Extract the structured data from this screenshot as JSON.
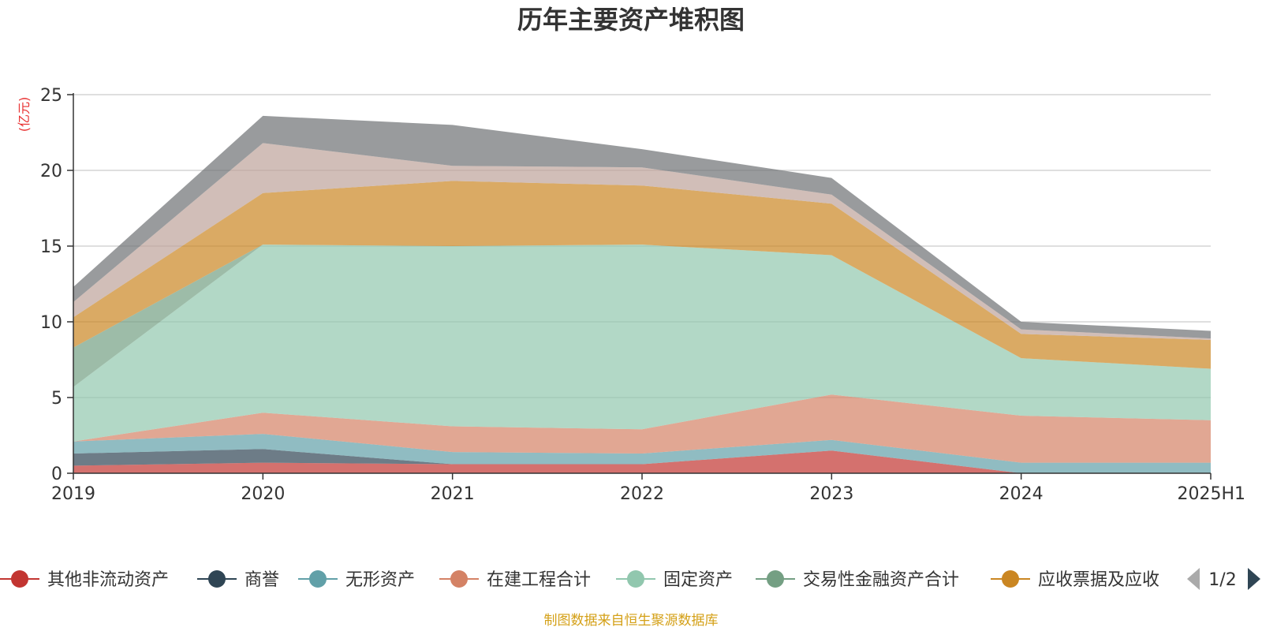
{
  "chart_data": {
    "type": "area",
    "title": "历年主要资产堆积图",
    "unit_label": "(亿元)",
    "source_note": "制图数据来自恒生聚源数据库",
    "categories": [
      "2019",
      "2020",
      "2021",
      "2022",
      "2023",
      "2024",
      "2025H1"
    ],
    "y_ticks": [
      "0",
      "5",
      "10",
      "15",
      "20",
      "25"
    ],
    "ylim": [
      0,
      25
    ],
    "grid": true,
    "stacked": true,
    "series": [
      {
        "name": "其他非流动资产",
        "color": "#c23531",
        "values": [
          0.5,
          0.7,
          0.6,
          0.6,
          1.5,
          0.0,
          0.0
        ]
      },
      {
        "name": "商誉",
        "color": "#2f4554",
        "values": [
          0.8,
          0.9,
          0.0,
          0.0,
          0.0,
          0.0,
          0.0
        ]
      },
      {
        "name": "无形资产",
        "color": "#61a0a8",
        "values": [
          0.8,
          1.0,
          0.8,
          0.7,
          0.7,
          0.7,
          0.7
        ]
      },
      {
        "name": "在建工程合计",
        "color": "#d48265",
        "values": [
          0.0,
          1.4,
          1.7,
          1.6,
          3.0,
          3.1,
          2.8
        ]
      },
      {
        "name": "固定资产",
        "color": "#91c7ae",
        "values": [
          3.6,
          11.1,
          11.9,
          12.2,
          9.2,
          3.8,
          3.4
        ]
      },
      {
        "name": "交易性金融资产合计",
        "color": "#749f83",
        "values": [
          2.6,
          0.0,
          0.0,
          0.0,
          0.0,
          0.0,
          0.0
        ]
      },
      {
        "name": "应收票据及应收",
        "color": "#ca8622",
        "values": [
          2.0,
          3.4,
          4.3,
          3.9,
          3.4,
          1.6,
          1.9
        ]
      },
      {
        "name": "",
        "color": "#bda29a",
        "values": [
          1.0,
          3.3,
          1.0,
          1.2,
          0.6,
          0.3,
          0.1
        ]
      },
      {
        "name": "",
        "color": "#6e7074",
        "values": [
          1.0,
          1.8,
          2.7,
          1.2,
          1.1,
          0.5,
          0.5
        ]
      }
    ],
    "legend": {
      "position": "bottom",
      "page_text": "1/2",
      "items": [
        "其他非流动资产",
        "商誉",
        "无形资产",
        "在建工程合计",
        "固定资产",
        "交易性金融资产合计",
        "应收票据及应收"
      ]
    }
  }
}
